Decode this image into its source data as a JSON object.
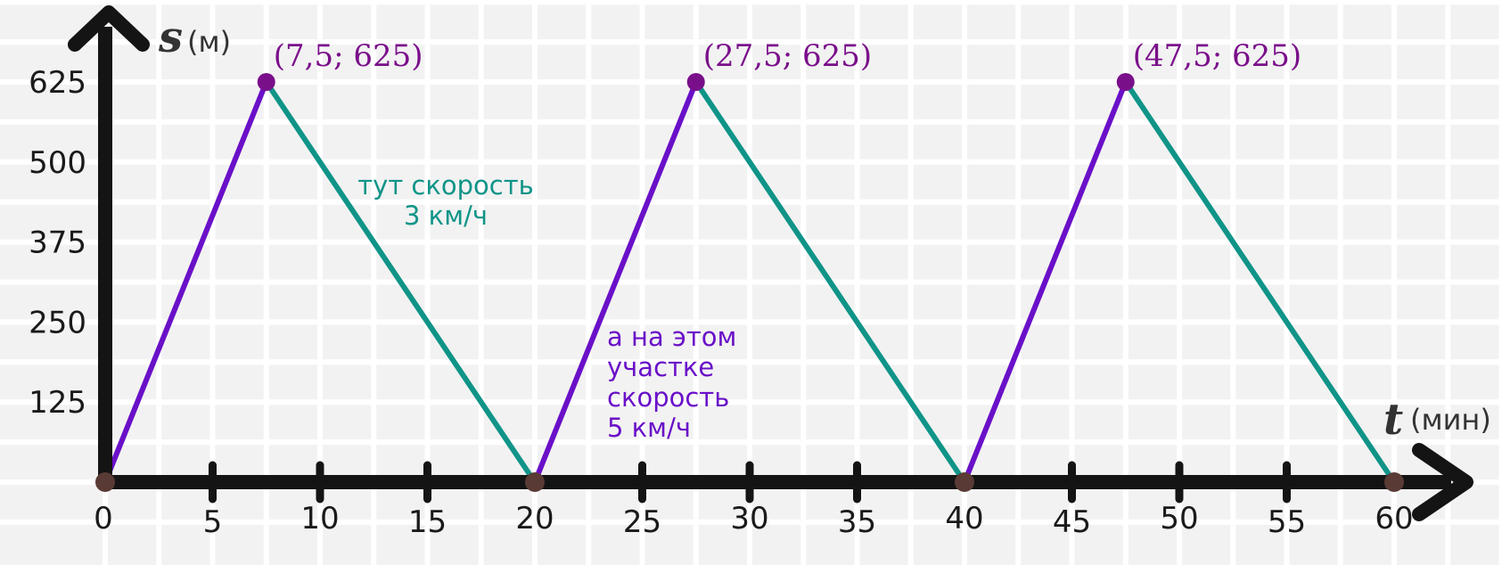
{
  "chart_data": {
    "type": "line",
    "title": "",
    "xlabel": "t",
    "xunit": "(мин)",
    "ylabel": "s",
    "yunit": "(м)",
    "xlim": [
      0,
      60
    ],
    "ylim": [
      0,
      625
    ],
    "xticks": [
      0,
      5,
      10,
      15,
      20,
      25,
      30,
      35,
      40,
      45,
      50,
      55,
      60
    ],
    "yticks": [
      125,
      250,
      375,
      500,
      625
    ],
    "grid": true,
    "series": [
      {
        "color": "#6a10c8",
        "segments": [
          [
            [
              0,
              0
            ],
            [
              7.5,
              625
            ]
          ],
          [
            [
              20,
              0
            ],
            [
              27.5,
              625
            ]
          ],
          [
            [
              40,
              0
            ],
            [
              47.5,
              625
            ]
          ]
        ]
      },
      {
        "color": "#109488",
        "segments": [
          [
            [
              7.5,
              625
            ],
            [
              20,
              0
            ]
          ],
          [
            [
              27.5,
              625
            ],
            [
              40,
              0
            ]
          ],
          [
            [
              47.5,
              625
            ],
            [
              60,
              0
            ]
          ]
        ]
      }
    ],
    "peaks": [
      {
        "x": 7.5,
        "y": 625,
        "label": "(7,5; 625)"
      },
      {
        "x": 27.5,
        "y": 625,
        "label": "(27,5; 625)"
      },
      {
        "x": 47.5,
        "y": 625,
        "label": "(47,5; 625)"
      }
    ],
    "base_points": [
      {
        "x": 0,
        "y": 0
      },
      {
        "x": 20,
        "y": 0
      },
      {
        "x": 40,
        "y": 0
      },
      {
        "x": 60,
        "y": 0
      }
    ],
    "annotations": [
      {
        "lines": [
          "тут скорость",
          "3 км/ч"
        ],
        "color": "#109488"
      },
      {
        "lines": [
          "а на этом",
          "участке",
          "скорость",
          "5 км/ч"
        ],
        "color": "#6a10c8"
      }
    ],
    "colors": {
      "axis": "#141414",
      "grid": "#ffffff",
      "peak_point": "#7a0f8a",
      "base_point": "#5a3a34"
    }
  }
}
